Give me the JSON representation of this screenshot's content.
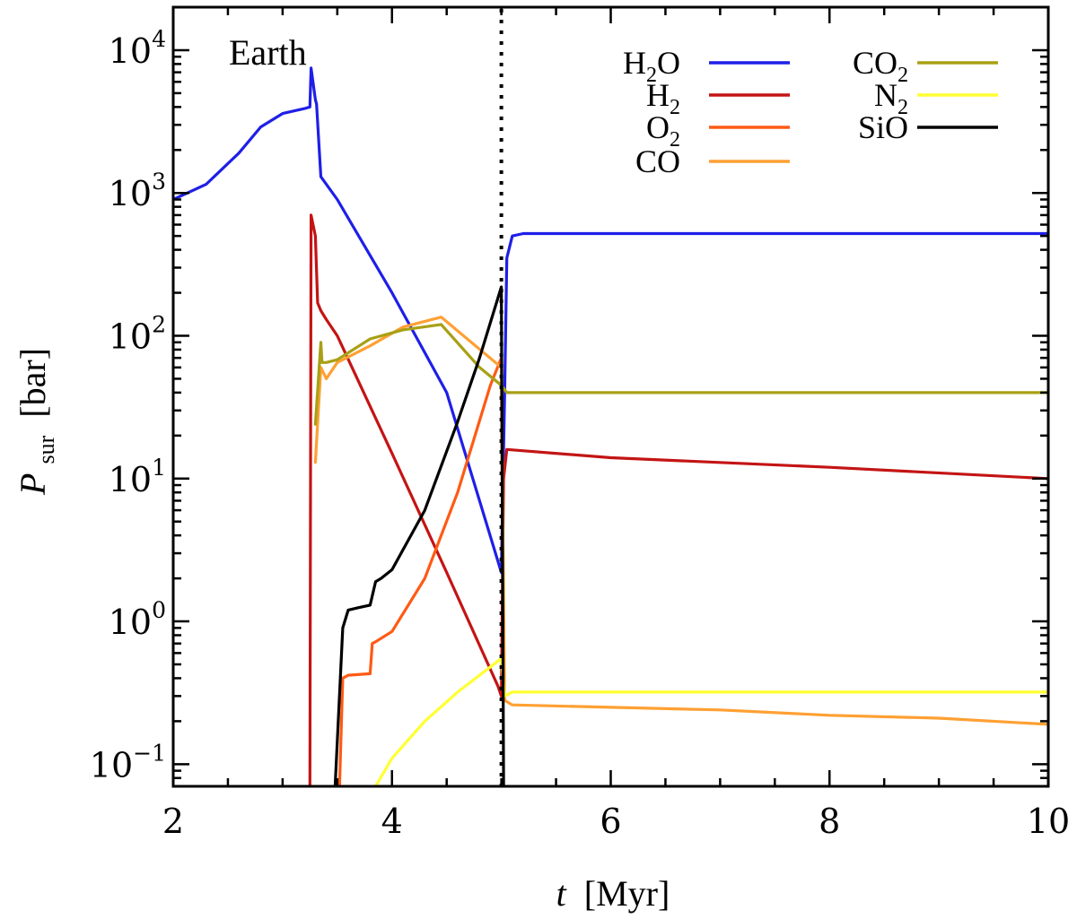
{
  "chart_data": {
    "type": "line",
    "title": "",
    "annotation": "Earth",
    "xlabel": {
      "symbol": "t",
      "unit": "[Myr]"
    },
    "ylabel": {
      "symbol": "P",
      "subscript": "sur",
      "unit": "[bar]"
    },
    "xlim": [
      2,
      10
    ],
    "ylim": [
      0.07,
      20000
    ],
    "yscale": "log",
    "grid": false,
    "legend_position": "top-right",
    "vline": {
      "x": 5.0,
      "style": "dotted"
    },
    "x_ticks": [
      {
        "value": 2,
        "label": "2"
      },
      {
        "value": 4,
        "label": "4"
      },
      {
        "value": 6,
        "label": "6"
      },
      {
        "value": 8,
        "label": "8"
      },
      {
        "value": 10,
        "label": "10"
      }
    ],
    "y_ticks": [
      {
        "value": 0.1,
        "base": "10",
        "exp": "−1"
      },
      {
        "value": 1,
        "base": "10",
        "exp": "0"
      },
      {
        "value": 10,
        "base": "10",
        "exp": "1"
      },
      {
        "value": 100,
        "base": "10",
        "exp": "2"
      },
      {
        "value": 1000,
        "base": "10",
        "exp": "3"
      },
      {
        "value": 10000,
        "base": "10",
        "exp": "4"
      }
    ],
    "series": [
      {
        "name": "H2O",
        "label_main": "H",
        "label_sub": "2",
        "label_tail": "O",
        "color": "#1f1fe8",
        "x": [
          2.0,
          2.3,
          2.6,
          2.8,
          3.0,
          3.1,
          3.2,
          3.25,
          3.26,
          3.3,
          3.31,
          3.35,
          3.5,
          4.0,
          4.5,
          5.0,
          5.03,
          5.05,
          5.1,
          5.2,
          6.0,
          8.0,
          10.0
        ],
        "y": [
          900,
          1150,
          1900,
          2900,
          3600,
          3750,
          3900,
          4000,
          7500,
          4500,
          4200,
          1300,
          900,
          200,
          40,
          2.2,
          40,
          350,
          500,
          520,
          520,
          520,
          520
        ]
      },
      {
        "name": "H2",
        "label_main": "H",
        "label_sub": "2",
        "label_tail": "",
        "color": "#c41414",
        "x": [
          3.25,
          3.26,
          3.3,
          3.32,
          3.35,
          3.4,
          3.5,
          4.0,
          4.5,
          4.97,
          5.0,
          5.02,
          5.05,
          6.0,
          8.0,
          10.0
        ],
        "y": [
          0.07,
          700,
          500,
          170,
          150,
          130,
          100,
          15,
          2.2,
          0.35,
          0.3,
          10,
          16,
          14,
          12,
          10
        ]
      },
      {
        "name": "O2",
        "label_main": "O",
        "label_sub": "2",
        "label_tail": "",
        "color": "#ff5a14",
        "x": [
          3.52,
          3.55,
          3.6,
          3.8,
          3.82,
          3.85,
          4.0,
          4.3,
          4.6,
          4.9,
          5.0,
          5.02
        ],
        "y": [
          0.07,
          0.4,
          0.42,
          0.43,
          0.7,
          0.72,
          0.85,
          2.0,
          8.0,
          45.0,
          70.0,
          0.3
        ]
      },
      {
        "name": "CO",
        "label_main": "CO",
        "label_sub": "",
        "label_tail": "",
        "color": "#ffa033",
        "x": [
          3.3,
          3.35,
          3.4,
          3.5,
          3.8,
          4.1,
          4.45,
          5.0,
          5.03,
          5.1,
          6.0,
          7.0,
          8.0,
          9.0,
          10.0
        ],
        "y": [
          13,
          60,
          50,
          65,
          85,
          115,
          135,
          60,
          0.28,
          0.26,
          0.25,
          0.24,
          0.22,
          0.21,
          0.19
        ]
      },
      {
        "name": "CO2",
        "label_main": "CO",
        "label_sub": "2",
        "label_tail": "",
        "color": "#a8a014",
        "x": [
          3.3,
          3.35,
          3.36,
          3.4,
          3.5,
          3.8,
          4.1,
          4.45,
          4.8,
          5.0,
          5.05,
          6.0,
          8.0,
          10.0
        ],
        "y": [
          24,
          90,
          65,
          65,
          68,
          95,
          110,
          120,
          60,
          45,
          40,
          40,
          40,
          40
        ]
      },
      {
        "name": "N2",
        "label_main": "N",
        "label_sub": "2",
        "label_tail": "",
        "color": "#ffff33",
        "x": [
          3.85,
          4.0,
          4.3,
          4.6,
          4.9,
          5.0,
          5.03,
          5.1,
          6.0,
          8.0,
          10.0
        ],
        "y": [
          0.07,
          0.11,
          0.2,
          0.32,
          0.48,
          0.55,
          0.3,
          0.32,
          0.32,
          0.32,
          0.32
        ]
      },
      {
        "name": "SiO",
        "label_main": "SiO",
        "label_sub": "",
        "label_tail": "",
        "color": "#000000",
        "x": [
          3.48,
          3.55,
          3.6,
          3.7,
          3.8,
          3.85,
          3.9,
          4.0,
          4.3,
          4.6,
          4.8,
          5.0,
          5.02
        ],
        "y": [
          0.07,
          0.9,
          1.2,
          1.25,
          1.3,
          1.9,
          2.0,
          2.3,
          6.0,
          25,
          70,
          220,
          0.07
        ]
      }
    ]
  }
}
